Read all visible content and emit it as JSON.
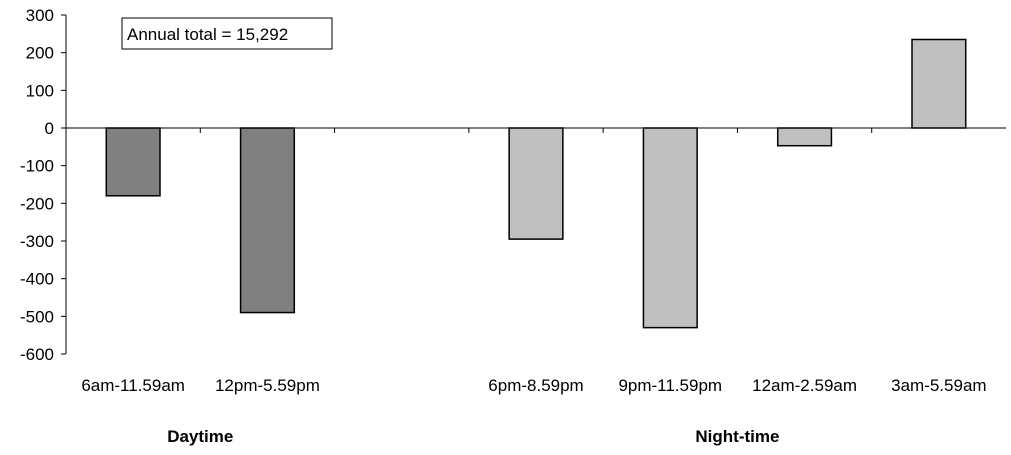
{
  "chart_data": {
    "type": "bar",
    "annotation": "Annual total = 15,292",
    "categories": [
      "6am-11.59am",
      "12pm-5.59pm",
      "",
      "6pm-8.59pm",
      "9pm-11.59pm",
      "12am-2.59am",
      "3am-5.59am"
    ],
    "values": [
      -180,
      -490,
      null,
      -295,
      -530,
      -47,
      235
    ],
    "groups": [
      {
        "label": "Daytime",
        "categories": [
          "6am-11.59am",
          "12pm-5.59pm"
        ],
        "color": "#808080"
      },
      {
        "label": "Night-time",
        "categories": [
          "6pm-8.59pm",
          "9pm-11.59pm",
          "12am-2.59am",
          "3am-5.59am"
        ],
        "color": "#c0c0c0"
      }
    ],
    "bar_colors": [
      "#808080",
      "#808080",
      null,
      "#c0c0c0",
      "#c0c0c0",
      "#c0c0c0",
      "#c0c0c0"
    ],
    "ylim": [
      -600,
      300
    ],
    "yticks": [
      300,
      200,
      100,
      0,
      -100,
      -200,
      -300,
      -400,
      -500,
      -600
    ],
    "grid": false,
    "legend": "none"
  }
}
